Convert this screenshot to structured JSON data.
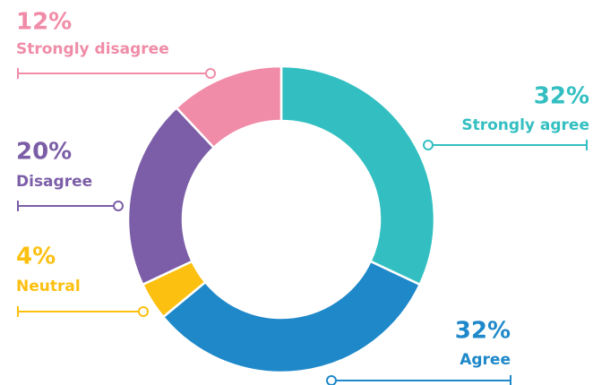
{
  "chart_data": {
    "type": "donut",
    "categories": [
      "Strongly agree",
      "Agree",
      "Neutral",
      "Disagree",
      "Strongly disagree"
    ],
    "values": [
      32,
      32,
      4,
      20,
      12
    ],
    "value_labels": [
      "32%",
      "32%",
      "4%",
      "20%",
      "12%"
    ],
    "colors": [
      "#33bfc1",
      "#1e88c9",
      "#fcc010",
      "#7b5ea7",
      "#f08ca8"
    ]
  }
}
